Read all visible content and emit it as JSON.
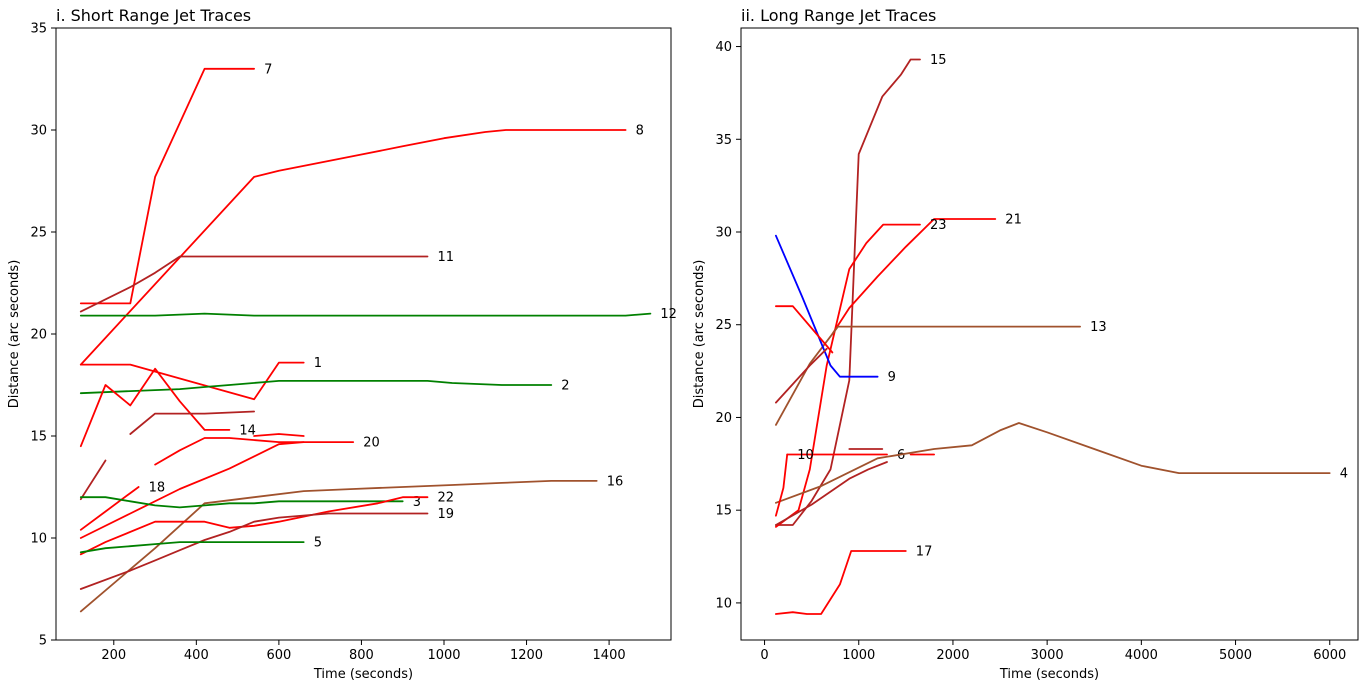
{
  "chart_data": [
    {
      "type": "line",
      "title": "i. Short Range Jet Traces",
      "xlabel": "Time (seconds)",
      "ylabel": "Distance (arc seconds)",
      "xlim": [
        60,
        1550
      ],
      "ylim": [
        5,
        35
      ],
      "xticks": [
        200,
        400,
        600,
        800,
        1000,
        1200,
        1400
      ],
      "yticks": [
        5,
        10,
        15,
        20,
        25,
        30,
        35
      ],
      "grid": false,
      "series": [
        {
          "name": "7",
          "color": "#ff0000",
          "x": [
            120,
            240,
            300,
            420,
            540
          ],
          "y": [
            21.5,
            21.5,
            27.7,
            33.0,
            33.0
          ]
        },
        {
          "name": "8",
          "color": "#ff0000",
          "x": [
            120,
            540,
            600,
            700,
            800,
            900,
            1000,
            1100,
            1150,
            1250,
            1370,
            1440
          ],
          "y": [
            18.5,
            27.7,
            28.0,
            28.4,
            28.8,
            29.2,
            29.6,
            29.9,
            30.0,
            30.0,
            30.0,
            30.0
          ]
        },
        {
          "name": "11",
          "color": "#b22222",
          "x": [
            120,
            240,
            300,
            360,
            540,
            720,
            900,
            960
          ],
          "y": [
            21.1,
            22.3,
            23.0,
            23.8,
            23.8,
            23.8,
            23.8,
            23.8
          ]
        },
        {
          "name": "12",
          "color": "#008000",
          "x": [
            120,
            300,
            420,
            540,
            600,
            720,
            840,
            900,
            1020,
            1140,
            1260,
            1370,
            1440,
            1500
          ],
          "y": [
            20.9,
            20.9,
            21.0,
            20.9,
            20.9,
            20.9,
            20.9,
            20.9,
            20.9,
            20.9,
            20.9,
            20.9,
            20.9,
            21.0
          ]
        },
        {
          "name": "1",
          "color": "#ff0000",
          "x": [
            120,
            240,
            540,
            600,
            660
          ],
          "y": [
            18.5,
            18.5,
            16.8,
            18.6,
            18.6
          ]
        },
        {
          "name": "2",
          "color": "#008000",
          "x": [
            120,
            240,
            360,
            420,
            480,
            600,
            720,
            840,
            960,
            1020,
            1140,
            1200,
            1260
          ],
          "y": [
            17.1,
            17.2,
            17.3,
            17.4,
            17.5,
            17.7,
            17.7,
            17.7,
            17.7,
            17.6,
            17.5,
            17.5,
            17.5
          ]
        },
        {
          "name": "14",
          "color": "#ff0000",
          "x": [
            120,
            180,
            240,
            300,
            360,
            420,
            480
          ],
          "y": [
            14.5,
            17.5,
            16.5,
            18.3,
            16.7,
            15.3,
            15.3
          ]
        },
        {
          "name": "",
          "color": "#b22222",
          "x": [
            240,
            300,
            420,
            540
          ],
          "y": [
            15.1,
            16.1,
            16.1,
            16.2
          ]
        },
        {
          "name": "20",
          "color": "#ff0000",
          "x": [
            300,
            360,
            420,
            480,
            600,
            720,
            780
          ],
          "y": [
            13.6,
            14.3,
            14.9,
            14.9,
            14.7,
            14.7,
            14.7
          ]
        },
        {
          "name": "",
          "color": "#ff0000",
          "x": [
            540,
            600,
            660
          ],
          "y": [
            15.0,
            15.1,
            15.0
          ]
        },
        {
          "name": "",
          "color": "#b22222",
          "x": [
            120,
            180
          ],
          "y": [
            11.9,
            13.8
          ]
        },
        {
          "name": "18",
          "color": "#ff0000",
          "x": [
            120,
            180,
            240,
            260
          ],
          "y": [
            10.4,
            11.3,
            12.2,
            12.5
          ]
        },
        {
          "name": "",
          "color": "#ff0000",
          "x": [
            120,
            240,
            360,
            480,
            540,
            600,
            660
          ],
          "y": [
            10.0,
            11.2,
            12.4,
            13.4,
            14.0,
            14.6,
            14.7
          ]
        },
        {
          "name": "16",
          "color": "#a0522d",
          "x": [
            120,
            300,
            420,
            540,
            660,
            780,
            900,
            1020,
            1140,
            1260,
            1370
          ],
          "y": [
            6.4,
            9.5,
            11.7,
            12.0,
            12.3,
            12.4,
            12.5,
            12.6,
            12.7,
            12.8,
            12.8
          ]
        },
        {
          "name": "3",
          "color": "#008000",
          "x": [
            120,
            180,
            240,
            300,
            360,
            420,
            480,
            540,
            600,
            720,
            840,
            900
          ],
          "y": [
            12.0,
            12.0,
            11.8,
            11.6,
            11.5,
            11.6,
            11.7,
            11.7,
            11.8,
            11.8,
            11.8,
            11.8
          ]
        },
        {
          "name": "22",
          "color": "#ff0000",
          "x": [
            120,
            180,
            300,
            360,
            420,
            480,
            540,
            600,
            720,
            840,
            900,
            960
          ],
          "y": [
            9.2,
            9.8,
            10.8,
            10.8,
            10.8,
            10.5,
            10.6,
            10.8,
            11.3,
            11.7,
            12.0,
            12.0
          ]
        },
        {
          "name": "19",
          "color": "#b22222",
          "x": [
            120,
            240,
            300,
            360,
            420,
            480,
            540,
            600,
            720,
            780,
            840,
            900,
            960
          ],
          "y": [
            7.5,
            8.4,
            8.9,
            9.4,
            9.9,
            10.3,
            10.8,
            11.0,
            11.2,
            11.2,
            11.2,
            11.2,
            11.2
          ]
        },
        {
          "name": "5",
          "color": "#008000",
          "x": [
            120,
            180,
            240,
            300,
            360,
            420,
            480,
            540,
            600,
            660
          ],
          "y": [
            9.3,
            9.5,
            9.6,
            9.7,
            9.8,
            9.8,
            9.8,
            9.8,
            9.8,
            9.8
          ]
        }
      ]
    },
    {
      "type": "line",
      "title": "ii. Long Range Jet Traces",
      "xlabel": "Time (seconds)",
      "ylabel": "Distance (arc seconds)",
      "xlim": [
        -250,
        6300
      ],
      "ylim": [
        8,
        41
      ],
      "xticks": [
        0,
        1000,
        2000,
        3000,
        4000,
        5000,
        6000
      ],
      "yticks": [
        10,
        15,
        20,
        25,
        30,
        35,
        40
      ],
      "grid": false,
      "series": [
        {
          "name": "15",
          "color": "#b22222",
          "x": [
            120,
            300,
            500,
            700,
            900,
            1000,
            1250,
            1450,
            1550,
            1650
          ],
          "y": [
            14.2,
            14.2,
            15.5,
            17.2,
            22.0,
            34.2,
            37.3,
            38.5,
            39.3,
            39.3
          ]
        },
        {
          "name": "21",
          "color": "#ff0000",
          "x": [
            720,
            900,
            1200,
            1500,
            1800,
            1950,
            2200,
            2450
          ],
          "y": [
            24.5,
            25.9,
            27.6,
            29.2,
            30.7,
            30.7,
            30.7,
            30.7
          ]
        },
        {
          "name": "23",
          "color": "#ff0000",
          "x": [
            120,
            360,
            480,
            660,
            900,
            1080,
            1260,
            1300,
            1650
          ],
          "y": [
            14.1,
            15.0,
            17.2,
            22.8,
            28.0,
            29.4,
            30.4,
            30.4,
            30.4
          ]
        },
        {
          "name": "13",
          "color": "#a0522d",
          "x": [
            120,
            480,
            780,
            1200,
            1800,
            2400,
            3000,
            3350
          ],
          "y": [
            19.6,
            22.9,
            24.9,
            24.9,
            24.9,
            24.9,
            24.9,
            24.9
          ]
        },
        {
          "name": "9",
          "color": "#0000ff",
          "x": [
            120,
            400,
            700,
            800,
            1000,
            1200
          ],
          "y": [
            29.8,
            26.5,
            22.8,
            22.2,
            22.2,
            22.2
          ]
        },
        {
          "name": "",
          "color": "#ff0000",
          "x": [
            120,
            300,
            720
          ],
          "y": [
            26.0,
            26.0,
            23.5
          ]
        },
        {
          "name": "",
          "color": "#b22222",
          "x": [
            120,
            300,
            480,
            660
          ],
          "y": [
            20.8,
            21.8,
            22.8,
            23.7
          ]
        },
        {
          "name": "6",
          "color": "#ff0000",
          "x": [
            240,
            600,
            1200,
            1300
          ],
          "y": [
            18.0,
            18.0,
            18.0,
            18.0
          ]
        },
        {
          "name": "",
          "color": "#ff0000",
          "x": [
            1550,
            1800
          ],
          "y": [
            18.0,
            18.0
          ]
        },
        {
          "name": "",
          "color": "#b22222",
          "x": [
            900,
            1250
          ],
          "y": [
            18.3,
            18.3
          ]
        },
        {
          "name": "4",
          "color": "#a0522d",
          "x": [
            120,
            600,
            1200,
            1800,
            2200,
            2500,
            2700,
            3000,
            3500,
            4000,
            4400,
            5000,
            5450,
            6000
          ],
          "y": [
            15.4,
            16.3,
            17.8,
            18.3,
            18.5,
            19.3,
            19.7,
            19.2,
            18.3,
            17.4,
            17.0,
            17.0,
            17.0,
            17.0
          ]
        },
        {
          "name": "10",
          "color": "#ff0000",
          "x": [
            120,
            200,
            240
          ],
          "y": [
            14.7,
            16.2,
            18.0
          ]
        },
        {
          "name": "",
          "color": "#b22222",
          "x": [
            120,
            500,
            900,
            1100,
            1300
          ],
          "y": [
            14.2,
            15.3,
            16.7,
            17.2,
            17.6
          ]
        },
        {
          "name": "17",
          "color": "#ff0000",
          "x": [
            120,
            300,
            450,
            600,
            800,
            920,
            1100,
            1300,
            1500
          ],
          "y": [
            9.4,
            9.5,
            9.4,
            9.4,
            11.0,
            12.8,
            12.8,
            12.8,
            12.8
          ]
        }
      ]
    }
  ]
}
